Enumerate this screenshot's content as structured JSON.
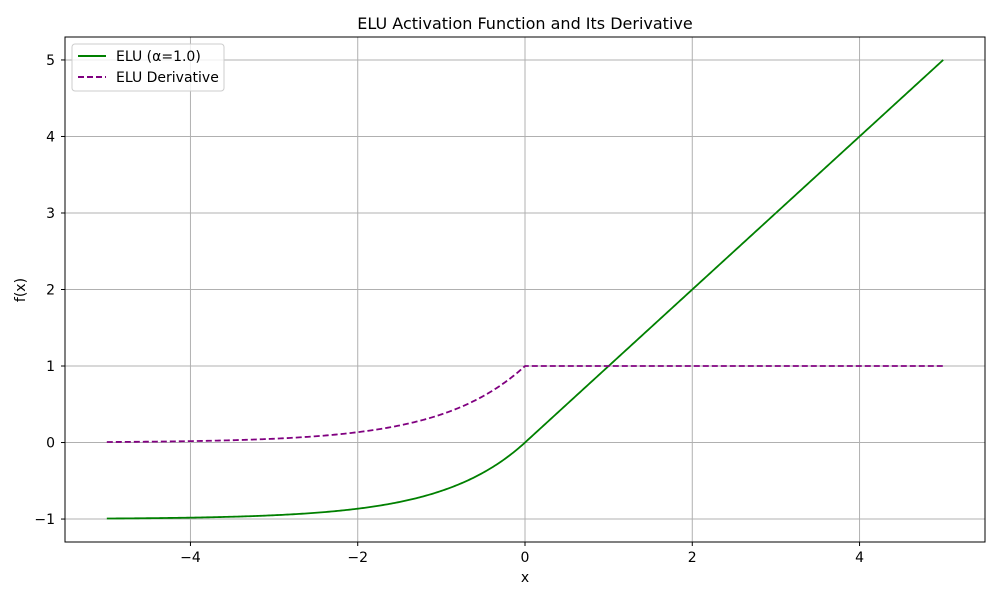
{
  "chart_data": {
    "type": "line",
    "title": "ELU Activation Function and Its Derivative",
    "xlabel": "x",
    "ylabel": "f(x)",
    "xlim": [
      -5.5,
      5.5
    ],
    "ylim": [
      -1.3,
      5.3
    ],
    "xticks": [
      -4,
      -2,
      0,
      2,
      4
    ],
    "yticks": [
      -1,
      0,
      1,
      2,
      3,
      4,
      5
    ],
    "grid": true,
    "legend_position": "upper left",
    "alpha": 1.0,
    "x_range": [
      -5,
      5
    ],
    "series": [
      {
        "name": "ELU (α=1.0)",
        "function": "elu",
        "color": "#008000",
        "dash": "solid"
      },
      {
        "name": "ELU Derivative",
        "function": "elu_derivative",
        "color": "#800080",
        "dash": "dashed"
      }
    ]
  }
}
